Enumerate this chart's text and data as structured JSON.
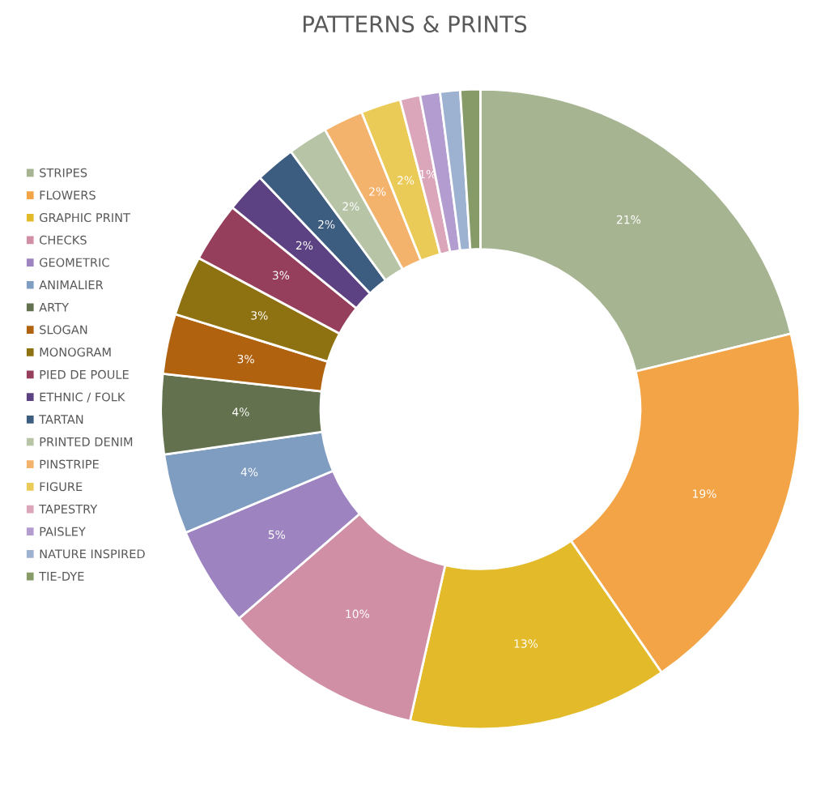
{
  "chart_data": {
    "type": "donut",
    "title": "PATTERNS & PRINTS",
    "categories": [
      "STRIPES",
      "FLOWERS",
      "GRAPHIC PRINT",
      "CHECKS",
      "GEOMETRIC",
      "ANIMALIER",
      "ARTY",
      "SLOGAN",
      "MONOGRAM",
      "PIED DE POULE",
      "ETHNIC / FOLK",
      "TARTAN",
      "PRINTED DENIM",
      "PINSTRIPE",
      "FIGURE",
      "TAPESTRY",
      "PAISLEY",
      "NATURE INSPIRED",
      "TIE-DYE"
    ],
    "values": [
      21,
      19,
      13,
      10,
      5,
      4,
      4,
      3,
      3,
      3,
      2,
      2,
      2,
      2,
      2,
      1,
      1,
      1,
      1
    ],
    "value_labels": [
      "21%",
      "19%",
      "13%",
      "10%",
      "5%",
      "4%",
      "4%",
      "3%",
      "3%",
      "3%",
      "2%",
      "2%",
      "2%",
      "2%",
      "2%",
      "1%",
      null,
      null,
      null
    ],
    "colors": [
      "#a6b491",
      "#f2a446",
      "#e3bb2a",
      "#d18fa6",
      "#9d84c1",
      "#7f9dc1",
      "#63714e",
      "#b0620e",
      "#8e7110",
      "#953f5c",
      "#5c4282",
      "#3c5c80",
      "#b7c4a6",
      "#f4b36c",
      "#ebcb58",
      "#dca6ba",
      "#b39ccf",
      "#9db1d0",
      "#869b68"
    ],
    "legend": "left"
  }
}
